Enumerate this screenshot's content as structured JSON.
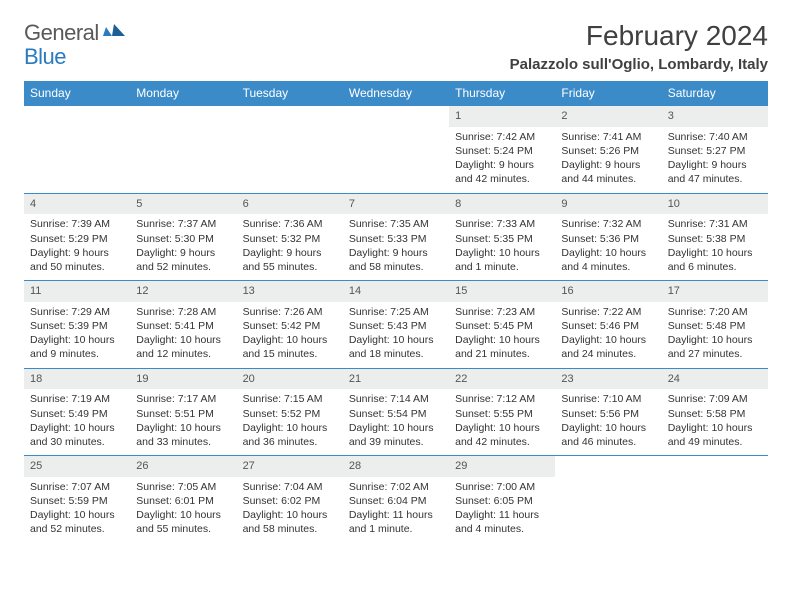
{
  "brand": {
    "word1": "General",
    "word2": "Blue"
  },
  "title": "February 2024",
  "location": "Palazzolo sull'Oglio, Lombardy, Italy",
  "colors": {
    "header_bg": "#3b8bc9",
    "header_text": "#ffffff",
    "daynum_bg": "#eceded",
    "border": "#3b8bc9",
    "brand_gray": "#595959",
    "brand_blue": "#2a7bbf",
    "body_text": "#333333"
  },
  "typography": {
    "title_fontsize": 28,
    "location_fontsize": 15,
    "dayheader_fontsize": 12,
    "cell_fontsize": 10.5
  },
  "day_headers": [
    "Sunday",
    "Monday",
    "Tuesday",
    "Wednesday",
    "Thursday",
    "Friday",
    "Saturday"
  ],
  "weeks": [
    [
      null,
      null,
      null,
      null,
      {
        "n": "1",
        "sr": "Sunrise: 7:42 AM",
        "ss": "Sunset: 5:24 PM",
        "dl": "Daylight: 9 hours and 42 minutes."
      },
      {
        "n": "2",
        "sr": "Sunrise: 7:41 AM",
        "ss": "Sunset: 5:26 PM",
        "dl": "Daylight: 9 hours and 44 minutes."
      },
      {
        "n": "3",
        "sr": "Sunrise: 7:40 AM",
        "ss": "Sunset: 5:27 PM",
        "dl": "Daylight: 9 hours and 47 minutes."
      }
    ],
    [
      {
        "n": "4",
        "sr": "Sunrise: 7:39 AM",
        "ss": "Sunset: 5:29 PM",
        "dl": "Daylight: 9 hours and 50 minutes."
      },
      {
        "n": "5",
        "sr": "Sunrise: 7:37 AM",
        "ss": "Sunset: 5:30 PM",
        "dl": "Daylight: 9 hours and 52 minutes."
      },
      {
        "n": "6",
        "sr": "Sunrise: 7:36 AM",
        "ss": "Sunset: 5:32 PM",
        "dl": "Daylight: 9 hours and 55 minutes."
      },
      {
        "n": "7",
        "sr": "Sunrise: 7:35 AM",
        "ss": "Sunset: 5:33 PM",
        "dl": "Daylight: 9 hours and 58 minutes."
      },
      {
        "n": "8",
        "sr": "Sunrise: 7:33 AM",
        "ss": "Sunset: 5:35 PM",
        "dl": "Daylight: 10 hours and 1 minute."
      },
      {
        "n": "9",
        "sr": "Sunrise: 7:32 AM",
        "ss": "Sunset: 5:36 PM",
        "dl": "Daylight: 10 hours and 4 minutes."
      },
      {
        "n": "10",
        "sr": "Sunrise: 7:31 AM",
        "ss": "Sunset: 5:38 PM",
        "dl": "Daylight: 10 hours and 6 minutes."
      }
    ],
    [
      {
        "n": "11",
        "sr": "Sunrise: 7:29 AM",
        "ss": "Sunset: 5:39 PM",
        "dl": "Daylight: 10 hours and 9 minutes."
      },
      {
        "n": "12",
        "sr": "Sunrise: 7:28 AM",
        "ss": "Sunset: 5:41 PM",
        "dl": "Daylight: 10 hours and 12 minutes."
      },
      {
        "n": "13",
        "sr": "Sunrise: 7:26 AM",
        "ss": "Sunset: 5:42 PM",
        "dl": "Daylight: 10 hours and 15 minutes."
      },
      {
        "n": "14",
        "sr": "Sunrise: 7:25 AM",
        "ss": "Sunset: 5:43 PM",
        "dl": "Daylight: 10 hours and 18 minutes."
      },
      {
        "n": "15",
        "sr": "Sunrise: 7:23 AM",
        "ss": "Sunset: 5:45 PM",
        "dl": "Daylight: 10 hours and 21 minutes."
      },
      {
        "n": "16",
        "sr": "Sunrise: 7:22 AM",
        "ss": "Sunset: 5:46 PM",
        "dl": "Daylight: 10 hours and 24 minutes."
      },
      {
        "n": "17",
        "sr": "Sunrise: 7:20 AM",
        "ss": "Sunset: 5:48 PM",
        "dl": "Daylight: 10 hours and 27 minutes."
      }
    ],
    [
      {
        "n": "18",
        "sr": "Sunrise: 7:19 AM",
        "ss": "Sunset: 5:49 PM",
        "dl": "Daylight: 10 hours and 30 minutes."
      },
      {
        "n": "19",
        "sr": "Sunrise: 7:17 AM",
        "ss": "Sunset: 5:51 PM",
        "dl": "Daylight: 10 hours and 33 minutes."
      },
      {
        "n": "20",
        "sr": "Sunrise: 7:15 AM",
        "ss": "Sunset: 5:52 PM",
        "dl": "Daylight: 10 hours and 36 minutes."
      },
      {
        "n": "21",
        "sr": "Sunrise: 7:14 AM",
        "ss": "Sunset: 5:54 PM",
        "dl": "Daylight: 10 hours and 39 minutes."
      },
      {
        "n": "22",
        "sr": "Sunrise: 7:12 AM",
        "ss": "Sunset: 5:55 PM",
        "dl": "Daylight: 10 hours and 42 minutes."
      },
      {
        "n": "23",
        "sr": "Sunrise: 7:10 AM",
        "ss": "Sunset: 5:56 PM",
        "dl": "Daylight: 10 hours and 46 minutes."
      },
      {
        "n": "24",
        "sr": "Sunrise: 7:09 AM",
        "ss": "Sunset: 5:58 PM",
        "dl": "Daylight: 10 hours and 49 minutes."
      }
    ],
    [
      {
        "n": "25",
        "sr": "Sunrise: 7:07 AM",
        "ss": "Sunset: 5:59 PM",
        "dl": "Daylight: 10 hours and 52 minutes."
      },
      {
        "n": "26",
        "sr": "Sunrise: 7:05 AM",
        "ss": "Sunset: 6:01 PM",
        "dl": "Daylight: 10 hours and 55 minutes."
      },
      {
        "n": "27",
        "sr": "Sunrise: 7:04 AM",
        "ss": "Sunset: 6:02 PM",
        "dl": "Daylight: 10 hours and 58 minutes."
      },
      {
        "n": "28",
        "sr": "Sunrise: 7:02 AM",
        "ss": "Sunset: 6:04 PM",
        "dl": "Daylight: 11 hours and 1 minute."
      },
      {
        "n": "29",
        "sr": "Sunrise: 7:00 AM",
        "ss": "Sunset: 6:05 PM",
        "dl": "Daylight: 11 hours and 4 minutes."
      },
      null,
      null
    ]
  ]
}
